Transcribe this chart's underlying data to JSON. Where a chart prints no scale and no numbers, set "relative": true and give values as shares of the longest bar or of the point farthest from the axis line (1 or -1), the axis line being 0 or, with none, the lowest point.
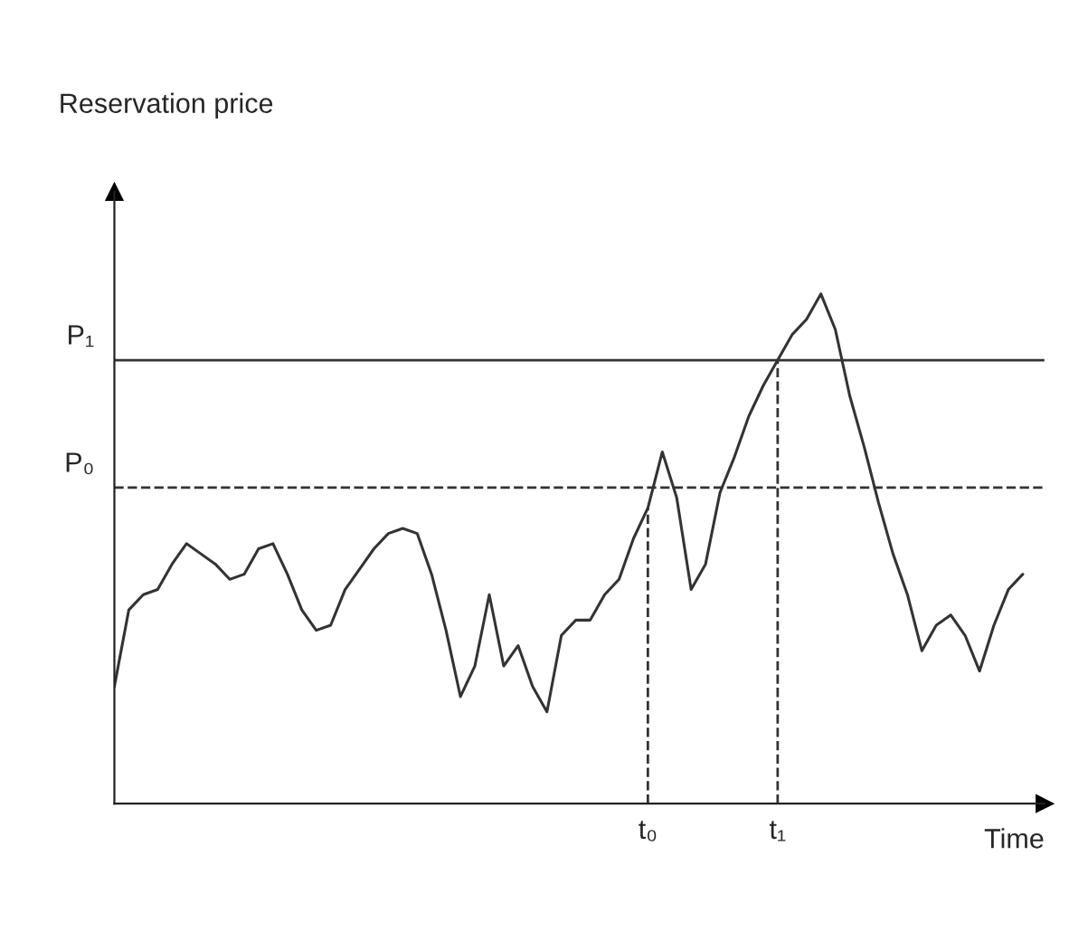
{
  "chart_data": {
    "type": "line",
    "relative": true,
    "annotations": [
      "Reservation price"
    ],
    "xlabel": "Time",
    "legend": false,
    "marker": "none",
    "line_style": "solid",
    "categories": [
      null,
      null,
      null,
      null,
      null,
      null,
      null,
      null,
      null,
      null,
      null,
      null,
      null,
      null,
      null,
      null,
      null,
      null,
      null,
      null,
      null,
      null,
      null,
      null,
      null,
      null,
      null,
      null,
      null,
      null,
      null,
      null,
      null,
      null,
      null,
      null,
      null,
      "t₀",
      null,
      null,
      null,
      null,
      null,
      null,
      null,
      null,
      "t₁",
      null,
      null,
      null,
      null,
      null,
      null,
      null,
      null,
      null,
      null,
      null,
      null,
      null,
      null,
      null,
      null,
      null
    ],
    "series": [
      {
        "color": "#333333",
        "values": [
          0.23,
          0.38,
          0.41,
          0.42,
          0.47,
          0.51,
          0.49,
          0.47,
          0.44,
          0.45,
          0.5,
          0.51,
          0.45,
          0.38,
          0.34,
          0.35,
          0.42,
          0.46,
          0.5,
          0.53,
          0.54,
          0.53,
          0.45,
          0.34,
          0.21,
          0.27,
          0.41,
          0.27,
          0.31,
          0.23,
          0.18,
          0.33,
          0.36,
          0.36,
          0.41,
          0.44,
          0.52,
          0.58,
          0.69,
          0.6,
          0.42,
          0.47,
          0.61,
          0.68,
          0.76,
          0.82,
          0.87,
          0.92,
          0.95,
          1.0,
          0.93,
          0.8,
          0.7,
          0.59,
          0.49,
          0.41,
          0.3,
          0.35,
          0.37,
          0.33,
          0.26,
          0.35,
          0.42,
          0.45
        ]
      }
    ],
    "ref_lines": [
      {
        "axis": "y",
        "value": 0.87,
        "label": "P₁",
        "line_style": "solid",
        "color": "#333333"
      },
      {
        "axis": "y",
        "value": 0.62,
        "label": "P₀",
        "line_style": "dashed",
        "color": "#333333"
      },
      {
        "axis": "x",
        "value": "t₀",
        "line_style": "dashed",
        "color": "#333333"
      },
      {
        "axis": "x",
        "value": "t₁",
        "line_style": "dashed",
        "color": "#333333"
      }
    ]
  }
}
